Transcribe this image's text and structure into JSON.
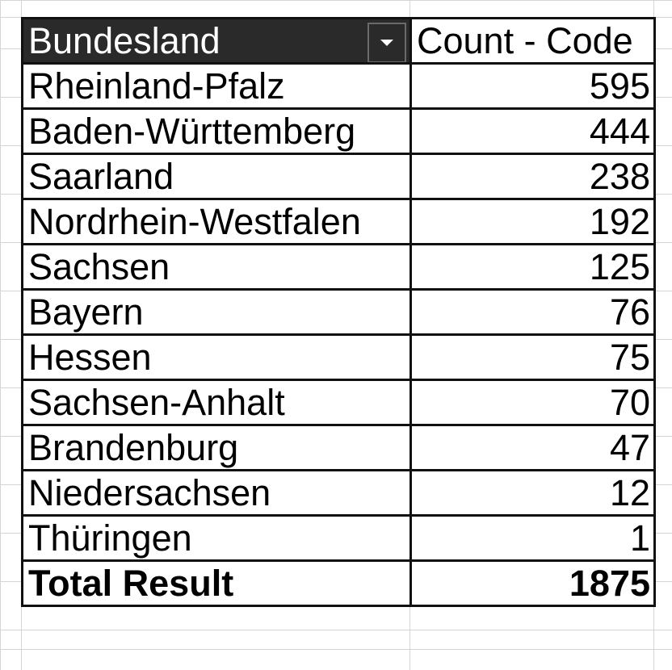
{
  "pivot": {
    "header": {
      "row_field": "Bundesland",
      "data_field": "Count - Code"
    },
    "rows": [
      {
        "name": "Rheinland-Pfalz",
        "count": "595"
      },
      {
        "name": "Baden-Württemberg",
        "count": "444"
      },
      {
        "name": "Saarland",
        "count": "238"
      },
      {
        "name": "Nordrhein-Westfalen",
        "count": "192"
      },
      {
        "name": "Sachsen",
        "count": "125"
      },
      {
        "name": "Bayern",
        "count": "76"
      },
      {
        "name": "Hessen",
        "count": "75"
      },
      {
        "name": "Sachsen-Anhalt",
        "count": "70"
      },
      {
        "name": "Brandenburg",
        "count": "47"
      },
      {
        "name": "Niedersachsen",
        "count": "12"
      },
      {
        "name": "Thüringen",
        "count": "1"
      }
    ],
    "total": {
      "label": "Total Result",
      "count": "1875"
    }
  },
  "icons": {
    "dropdown": "chevron-down-icon"
  },
  "colors": {
    "header_bg": "#2a2a2a",
    "header_text": "#ffffff",
    "border": "#111111",
    "gridline": "#d4d4d4"
  }
}
